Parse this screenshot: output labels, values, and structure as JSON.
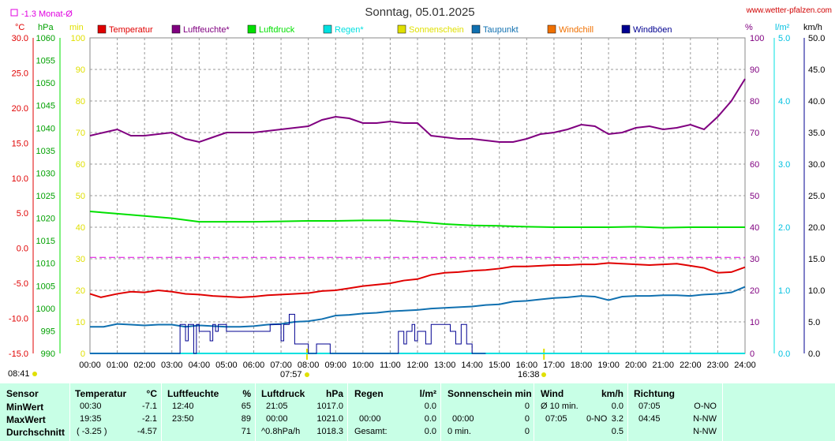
{
  "chart_data": {
    "type": "line",
    "title": "Sonntag, 05.01.2025",
    "site": "www.wetter-pfalzen.com",
    "monat_label": "-1.3 Monat-Ø",
    "axis_units": {
      "temp": "°C",
      "press": "hPa",
      "min": "min",
      "hum": "%",
      "rain": "l/m²",
      "wind": "km/h"
    },
    "legend": [
      {
        "name": "Temperatur",
        "color": "#e00000"
      },
      {
        "name": "Luftfeuchte*",
        "color": "#800080"
      },
      {
        "name": "Luftdruck",
        "color": "#00e000"
      },
      {
        "name": "Regen*",
        "color": "#00e0e0"
      },
      {
        "name": "Sonnenschein",
        "color": "#e0e000"
      },
      {
        "name": "Taupunkt",
        "color": "#1070b0"
      },
      {
        "name": "Windchill",
        "color": "#f07000"
      },
      {
        "name": "Windböen",
        "color": "#000090"
      }
    ],
    "x_ticks": [
      "00:00",
      "01:00",
      "02:00",
      "03:00",
      "04:00",
      "05:00",
      "06:00",
      "07:00",
      "08:00",
      "09:00",
      "10:00",
      "11:00",
      "12:00",
      "13:00",
      "14:00",
      "15:00",
      "16:00",
      "17:00",
      "18:00",
      "19:00",
      "20:00",
      "21:00",
      "22:00",
      "23:00",
      "24:00"
    ],
    "y_temp": {
      "min": -15,
      "max": 30,
      "ticks": [
        "30.0",
        "25.0",
        "20.0",
        "15.0",
        "10.0",
        "5.0",
        "0.0",
        "-5.0",
        "-10.0",
        "-15.0"
      ]
    },
    "y_press": {
      "min": 990,
      "max": 1060,
      "ticks": [
        "1060",
        "1055",
        "1050",
        "1045",
        "1040",
        "1035",
        "1030",
        "1025",
        "1020",
        "1015",
        "1010",
        "1005",
        "1000",
        "995",
        "990"
      ]
    },
    "y_min": {
      "min": 0,
      "max": 100,
      "ticks": [
        "100",
        "90",
        "80",
        "70",
        "60",
        "50",
        "40",
        "30",
        "20",
        "10",
        "0"
      ]
    },
    "y_hum": {
      "min": 0,
      "max": 100,
      "ticks": [
        "100",
        "90",
        "80",
        "70",
        "60",
        "50",
        "40",
        "30",
        "20",
        "10",
        "0"
      ]
    },
    "y_rain": {
      "min": 0,
      "max": 5,
      "ticks": [
        "5.0",
        "4.0",
        "3.0",
        "2.0",
        "1.0",
        "0.0"
      ]
    },
    "y_wind": {
      "min": 0,
      "max": 50,
      "ticks": [
        "50.0",
        "45.0",
        "40.0",
        "35.0",
        "30.0",
        "25.0",
        "20.0",
        "15.0",
        "10.0",
        "5.0",
        "0.0"
      ]
    },
    "monat_avg": -1.3,
    "sunrise": "08:41",
    "sunrise_line": "07:57",
    "sunset_line": "16:38",
    "series": [
      {
        "name": "Temperatur",
        "color": "#e00000",
        "axis": "temp",
        "x": [
          0,
          0.4,
          1,
          1.5,
          2,
          2.5,
          3,
          3.5,
          4,
          4.5,
          5,
          5.5,
          6,
          6.5,
          7,
          7.5,
          8,
          8.5,
          9,
          9.5,
          10,
          10.5,
          11,
          11.5,
          12,
          12.5,
          13,
          13.5,
          14,
          14.5,
          15,
          15.5,
          16,
          16.5,
          17,
          17.5,
          18,
          18.5,
          19,
          19.5,
          20,
          20.5,
          21,
          21.5,
          22,
          22.5,
          23,
          23.5,
          24
        ],
        "y": [
          -6.5,
          -7.0,
          -6.5,
          -6.2,
          -6.3,
          -6.0,
          -6.2,
          -6.5,
          -6.6,
          -6.8,
          -6.9,
          -7.0,
          -6.9,
          -6.7,
          -6.6,
          -6.5,
          -6.4,
          -6.1,
          -6.0,
          -5.7,
          -5.4,
          -5.2,
          -5.0,
          -4.6,
          -4.4,
          -3.8,
          -3.5,
          -3.4,
          -3.2,
          -3.1,
          -2.9,
          -2.6,
          -2.6,
          -2.5,
          -2.4,
          -2.4,
          -2.3,
          -2.3,
          -2.1,
          -2.2,
          -2.3,
          -2.4,
          -2.3,
          -2.2,
          -2.5,
          -2.8,
          -3.5,
          -3.4,
          -2.7
        ]
      },
      {
        "name": "Luftfeuchte*",
        "color": "#800080",
        "axis": "hum",
        "x": [
          0,
          0.5,
          1,
          1.5,
          2,
          2.5,
          3,
          3.5,
          4,
          4.5,
          5,
          5.5,
          6,
          6.5,
          7,
          7.5,
          8,
          8.5,
          9,
          9.5,
          10,
          10.5,
          11,
          11.5,
          12,
          12.5,
          13,
          13.5,
          14,
          14.5,
          15,
          15.5,
          16,
          16.5,
          17,
          17.5,
          18,
          18.5,
          19,
          19.5,
          20,
          20.5,
          21,
          21.5,
          22,
          22.5,
          23,
          23.5,
          24
        ],
        "y": [
          69,
          70,
          71,
          69,
          69,
          69.5,
          70,
          68,
          67,
          68.5,
          70,
          70,
          70,
          70.5,
          71,
          71.5,
          72,
          74,
          75,
          74.5,
          73,
          73,
          73.5,
          73,
          73,
          69,
          68.5,
          68,
          68,
          67.5,
          67,
          67,
          68,
          69.5,
          70,
          71,
          72.5,
          72,
          69.5,
          70,
          71.5,
          72,
          71,
          71.5,
          72.5,
          71,
          75,
          80,
          87
        ]
      },
      {
        "name": "Luftdruck",
        "color": "#00e000",
        "axis": "press",
        "x": [
          0,
          1,
          2,
          3,
          4,
          5,
          6,
          7,
          8,
          9,
          10,
          11,
          12,
          13,
          14,
          15,
          16,
          17,
          18,
          19,
          20,
          21,
          22,
          23,
          24
        ],
        "y": [
          1021.5,
          1021,
          1020.5,
          1020,
          1019.2,
          1019.2,
          1019.2,
          1019.3,
          1019.4,
          1019.4,
          1019.5,
          1019.5,
          1019.2,
          1018.7,
          1018.4,
          1018.3,
          1018.1,
          1018.0,
          1018.0,
          1018.0,
          1018.1,
          1017.9,
          1018.0,
          1018.0,
          1018.0
        ]
      },
      {
        "name": "Taupunkt",
        "color": "#1070b0",
        "axis": "temp",
        "x": [
          0,
          0.5,
          1,
          1.5,
          2,
          2.5,
          3,
          3.5,
          4,
          4.5,
          5,
          5.5,
          6,
          6.5,
          7,
          7.5,
          8,
          8.5,
          9,
          9.5,
          10,
          10.5,
          11,
          11.5,
          12,
          12.5,
          13,
          13.5,
          14,
          14.5,
          15,
          15.5,
          16,
          16.5,
          17,
          17.5,
          18,
          18.5,
          19,
          19.5,
          20,
          20.5,
          21,
          21.5,
          22,
          22.5,
          23,
          23.5,
          24
        ],
        "y": [
          -11.2,
          -11.2,
          -10.8,
          -10.9,
          -11.0,
          -10.9,
          -10.9,
          -11.2,
          -11.0,
          -11.1,
          -11.2,
          -11.2,
          -11.1,
          -10.9,
          -10.8,
          -10.5,
          -10.4,
          -10.1,
          -9.6,
          -9.5,
          -9.3,
          -9.2,
          -9.0,
          -8.9,
          -8.8,
          -8.6,
          -8.5,
          -8.4,
          -8.3,
          -8.1,
          -8.0,
          -7.6,
          -7.5,
          -7.3,
          -7.1,
          -7.0,
          -6.8,
          -6.9,
          -7.4,
          -6.9,
          -6.8,
          -6.8,
          -6.7,
          -6.7,
          -6.8,
          -6.6,
          -6.5,
          -6.3,
          -5.5
        ]
      },
      {
        "name": "Regen*",
        "color": "#00e0e0",
        "axis": "rain",
        "x": [
          0,
          24
        ],
        "y": [
          0,
          0
        ]
      },
      {
        "name": "Windböen",
        "color": "#000090",
        "axis": "wind",
        "step": true,
        "x": [
          0,
          3.2,
          3.3,
          3.5,
          3.6,
          3.8,
          3.9,
          4.0,
          4.4,
          4.5,
          4.6,
          4.7,
          5.0,
          5.5,
          6.0,
          6.5,
          6.6,
          7.0,
          7.1,
          7.3,
          7.5,
          7.8,
          8.0,
          8.3,
          8.8,
          10.0,
          11.0,
          11.3,
          11.5,
          11.6,
          11.8,
          11.9,
          12.0,
          12.3,
          12.5,
          13.0,
          13.2,
          13.4,
          13.6,
          13.8,
          14.0,
          14.3,
          14.5
        ],
        "y": [
          0,
          0,
          4.6,
          2.0,
          4.6,
          0,
          4.6,
          3.5,
          2.0,
          4.6,
          3.5,
          4.6,
          3.5,
          3.5,
          3.5,
          3.5,
          4.6,
          2.0,
          4.6,
          6.2,
          1.5,
          1.5,
          0,
          1.5,
          0,
          0,
          0,
          3.5,
          1.5,
          3.5,
          4.6,
          2.0,
          3.5,
          1.5,
          4.6,
          4.6,
          3.5,
          1.5,
          4.6,
          1.5,
          0,
          0,
          0
        ]
      }
    ]
  },
  "table": {
    "labels": {
      "sensor": "Sensor",
      "min": "MinWert",
      "max": "MaxWert",
      "avg": "Durchschnitt"
    },
    "temp": {
      "h": "Temperatur",
      "u": "°C",
      "min_t": "00:30",
      "min_v": "-7.1",
      "max_t": "19:35",
      "max_v": "-2.1",
      "avg_a": "( -3.25 )",
      "avg_v": "-4.57"
    },
    "hum": {
      "h": "Luftfeuchte",
      "u": "%",
      "min_t": "12:40",
      "min_v": "65",
      "max_t": "23:50",
      "max_v": "89",
      "avg_v": "71"
    },
    "press": {
      "h": "Luftdruck",
      "u": "hPa",
      "min_t": "21:05",
      "min_v": "1017.0",
      "max_t": "00:00",
      "max_v": "1021.0",
      "avg_a": "^0.8hPa/h",
      "avg_v": "1018.3"
    },
    "rain": {
      "h": "Regen",
      "u": "l/m²",
      "max_t": "00:00",
      "max_v": "0.0",
      "min_v": "0.0",
      "avg_a": "Gesamt:",
      "avg_v": "0.0"
    },
    "sun": {
      "h": "Sonnenschein min",
      "max_t": "00:00",
      "max_v": "0",
      "min_v": "0",
      "avg_a": "0 min.",
      "avg_v": "0"
    },
    "wind": {
      "h": "Wind",
      "u": "km/h",
      "min_a": "Ø 10 min.",
      "min_v": "0.0",
      "max_t": "07:05",
      "max_d": "0-NO",
      "max_v": "3.2",
      "avg_v": "0.5"
    },
    "dir": {
      "h": "Richtung",
      "min_t": "07:05",
      "min_v": "O-NO",
      "max_t": "04:45",
      "max_v": "N-NW",
      "avg_v": "N-NW"
    }
  }
}
